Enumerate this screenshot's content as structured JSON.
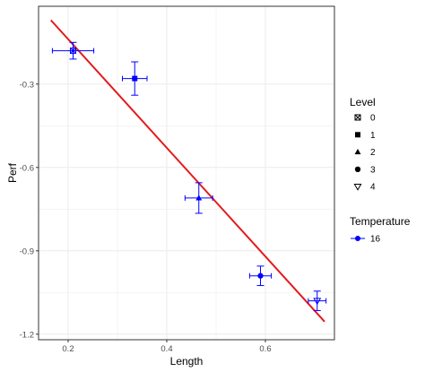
{
  "chart_data": {
    "type": "scatter",
    "xlabel": "Length",
    "ylabel": "Perf",
    "xlim": [
      0.14,
      0.74
    ],
    "ylim": [
      -1.22,
      -0.02
    ],
    "x_ticks": [
      0.2,
      0.4,
      0.6
    ],
    "x_tick_labels": [
      "0.2",
      "0.4",
      "0.6"
    ],
    "y_ticks": [
      -0.3,
      -0.6,
      -0.9,
      -1.2
    ],
    "y_tick_labels": [
      "-0.3",
      "-0.6",
      "-0.9",
      "-1.2"
    ],
    "grid": true,
    "points": [
      {
        "level": "0",
        "x": 0.21,
        "y": -0.18,
        "x_err": 0.042,
        "y_err": 0.03
      },
      {
        "level": "1",
        "x": 0.335,
        "y": -0.28,
        "x_err": 0.025,
        "y_err": 0.06
      },
      {
        "level": "2",
        "x": 0.465,
        "y": -0.71,
        "x_err": 0.028,
        "y_err": 0.055
      },
      {
        "level": "3",
        "x": 0.59,
        "y": -0.99,
        "x_err": 0.022,
        "y_err": 0.035
      },
      {
        "level": "4",
        "x": 0.705,
        "y": -1.08,
        "x_err": 0.018,
        "y_err": 0.035
      }
    ],
    "fit_line": {
      "x": [
        0.165,
        0.72
      ],
      "y": [
        -0.07,
        -1.155
      ]
    },
    "legends": [
      {
        "title": "Level",
        "entries": [
          {
            "label": "0",
            "shape": "square-cross"
          },
          {
            "label": "1",
            "shape": "square"
          },
          {
            "label": "2",
            "shape": "triangle"
          },
          {
            "label": "3",
            "shape": "circle"
          },
          {
            "label": "4",
            "shape": "triangle-down-open"
          }
        ]
      },
      {
        "title": "Temperature",
        "entries": [
          {
            "label": "16",
            "shape": "circle-line"
          }
        ]
      }
    ],
    "legend_position": "right",
    "colors": {
      "points": "#0000ff",
      "fit": "#e31a1c",
      "grid": "#ebebeb",
      "panel_border": "#333333",
      "legend_key": "#000000"
    }
  }
}
